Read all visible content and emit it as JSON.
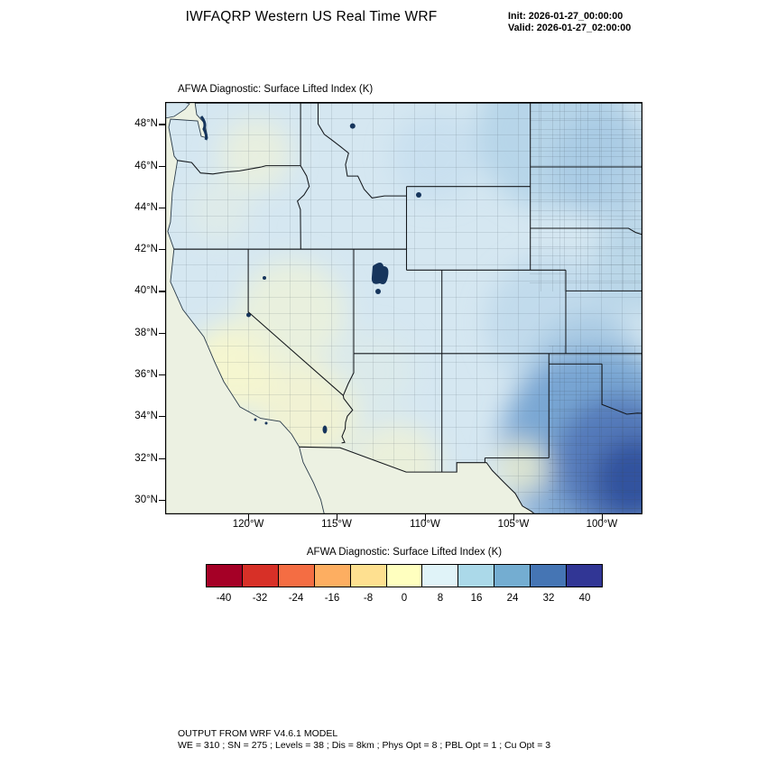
{
  "header": {
    "title": "IWFAQRP Western US Real Time WRF",
    "init_line": "Init: 2026-01-27_00:00:00",
    "valid_line": "Valid: 2026-01-27_02:00:00"
  },
  "map": {
    "title": "AFWA Diagnostic: Surface Lifted Index   (K)",
    "lat_labels": [
      "48°N",
      "46°N",
      "44°N",
      "42°N",
      "40°N",
      "38°N",
      "36°N",
      "34°N",
      "32°N",
      "30°N"
    ],
    "lon_labels": [
      "120°W",
      "115°W",
      "110°W",
      "105°W",
      "100°W"
    ]
  },
  "colorbar": {
    "title": "AFWA Diagnostic: Surface Lifted Index  (K)",
    "tick_labels": [
      "-40",
      "-32",
      "-24",
      "-16",
      "-8",
      "0",
      "8",
      "16",
      "24",
      "32",
      "40"
    ],
    "colors": [
      "#a50026",
      "#d73027",
      "#f46d43",
      "#fdae61",
      "#fee090",
      "#ffffbf",
      "#e0f3f8",
      "#abd9e9",
      "#74add1",
      "#4575b4",
      "#313695"
    ],
    "field_base_color": "#d5e7f1",
    "ocean_color": "#ecf1e2"
  },
  "footer": {
    "line1": "OUTPUT FROM WRF V4.6.1 MODEL",
    "line2": "WE = 310 ; SN = 275 ; Levels = 38 ; Dis = 8km ; Phys Opt = 8 ; PBL Opt = 1 ; Cu Opt = 3"
  }
}
